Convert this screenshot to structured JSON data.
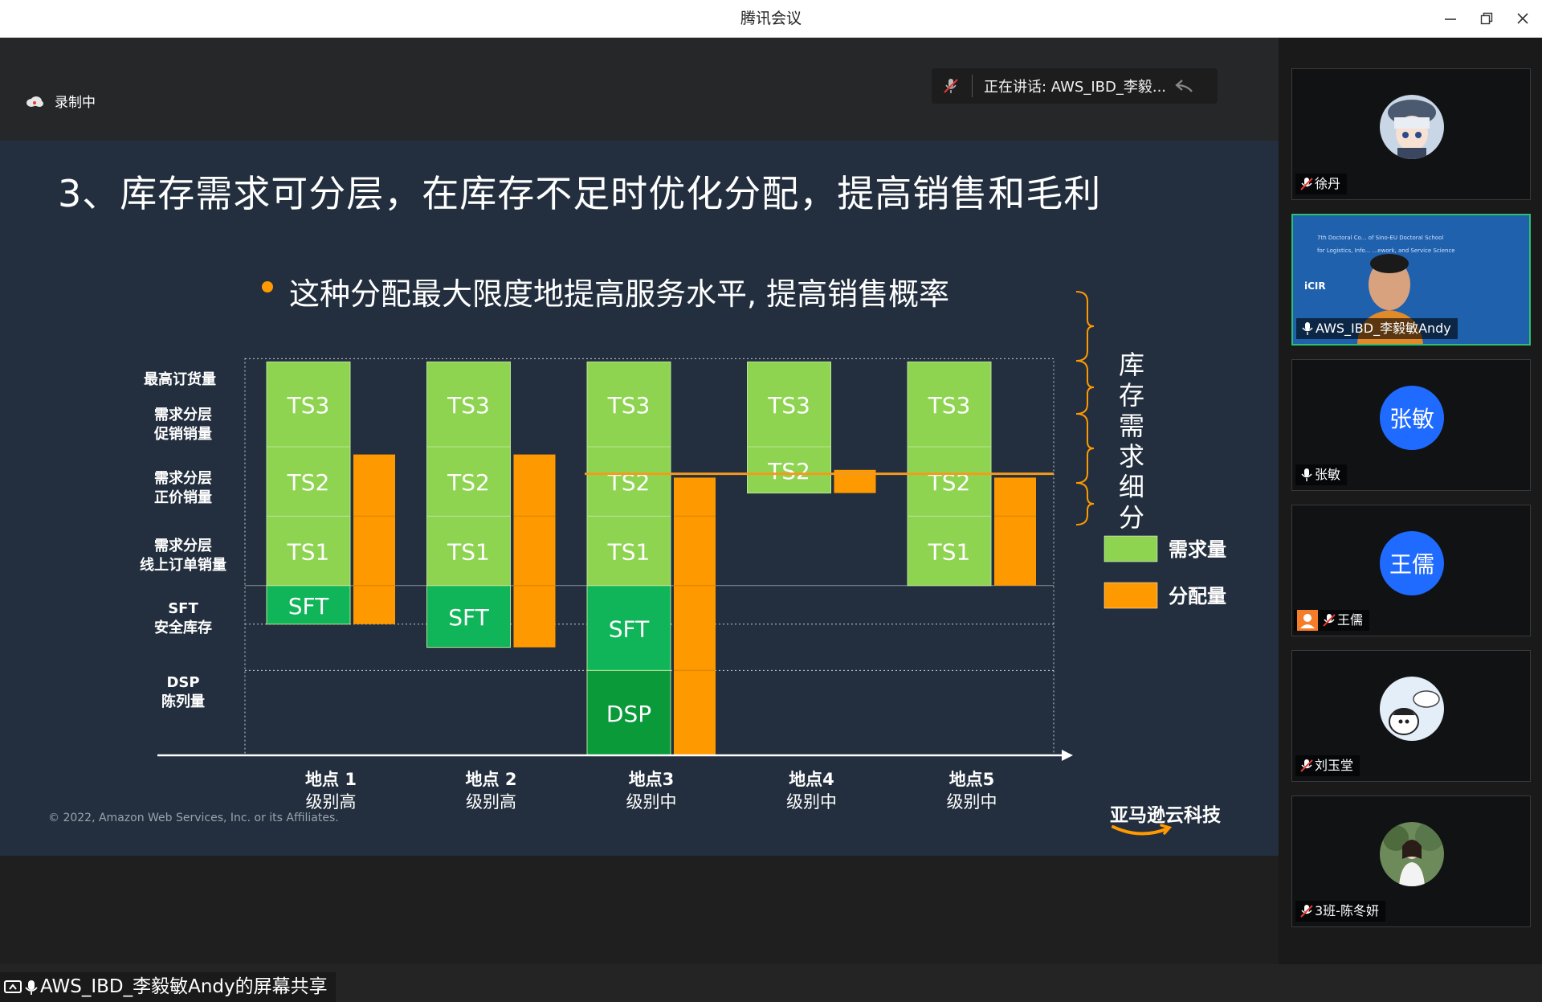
{
  "window": {
    "title": "腾讯会议"
  },
  "share_bar": {
    "recording_label": "录制中",
    "speaking": "正在讲话: AWS_IBD_李毅..."
  },
  "slide": {
    "title": "3、库存需求可分层，在库存不足时优化分配，提高销售和毛利",
    "bullet": "这种分配最大限度地提高服务水平, 提高销售概率",
    "copyright": "© 2022, Amazon Web Services, Inc. or its Affiliates.",
    "logo_text": "亚马逊云科技"
  },
  "chart_data": {
    "type": "bar",
    "row_labels": [
      {
        "line1": "最高订货量",
        "line2": ""
      },
      {
        "line1": "需求分层",
        "line2": "促销销量"
      },
      {
        "line1": "需求分层",
        "line2": "正价销量"
      },
      {
        "line1": "需求分层",
        "line2": "线上订单销量"
      },
      {
        "line1": "SFT",
        "line2": "安全库存"
      },
      {
        "line1": "DSP",
        "line2": "陈列量"
      }
    ],
    "locations": [
      {
        "name": "地点 1",
        "level": "级别高",
        "demand": [
          {
            "label": "TS3",
            "bottom": 4.0,
            "top": 5.1
          },
          {
            "label": "TS2",
            "bottom": 3.1,
            "top": 4.0
          },
          {
            "label": "TS1",
            "bottom": 2.2,
            "top": 3.1
          },
          {
            "label": "SFT",
            "bottom": 1.7,
            "top": 2.2
          }
        ],
        "alloc": {
          "bottom": 1.7,
          "top": 3.9
        }
      },
      {
        "name": "地点 2",
        "level": "级别高",
        "demand": [
          {
            "label": "TS3",
            "bottom": 4.0,
            "top": 5.1
          },
          {
            "label": "TS2",
            "bottom": 3.1,
            "top": 4.0
          },
          {
            "label": "TS1",
            "bottom": 2.2,
            "top": 3.1
          },
          {
            "label": "SFT",
            "bottom": 1.4,
            "top": 2.2
          }
        ],
        "alloc": {
          "bottom": 1.4,
          "top": 3.9
        }
      },
      {
        "name": "地点3",
        "level": "级别中",
        "demand": [
          {
            "label": "TS3",
            "bottom": 4.0,
            "top": 5.1
          },
          {
            "label": "TS2",
            "bottom": 3.1,
            "top": 4.0
          },
          {
            "label": "TS1",
            "bottom": 2.2,
            "top": 3.1
          },
          {
            "label": "SFT",
            "bottom": 1.1,
            "top": 2.2
          },
          {
            "label": "DSP",
            "bottom": 0.0,
            "top": 1.1
          }
        ],
        "alloc": {
          "bottom": 0.0,
          "top": 3.6
        }
      },
      {
        "name": "地点4",
        "level": "级别中",
        "demand": [
          {
            "label": "TS3",
            "bottom": 4.0,
            "top": 5.1
          },
          {
            "label": "TS2",
            "bottom": 3.4,
            "top": 4.0
          }
        ],
        "alloc": {
          "bottom": 3.4,
          "top": 3.7
        }
      },
      {
        "name": "地点5",
        "level": "级别中",
        "demand": [
          {
            "label": "TS3",
            "bottom": 4.0,
            "top": 5.1
          },
          {
            "label": "TS2",
            "bottom": 3.1,
            "top": 4.0
          },
          {
            "label": "TS1",
            "bottom": 2.2,
            "top": 3.1
          }
        ],
        "alloc": {
          "bottom": 2.2,
          "top": 3.6
        }
      }
    ],
    "inventory_line": 3.65,
    "brace_label": [
      "库",
      "存",
      "需",
      "求",
      "细",
      "分"
    ],
    "legend": [
      {
        "name": "需求量",
        "color": "#8ed451"
      },
      {
        "name": "分配量",
        "color": "#ff9900"
      }
    ],
    "colors": {
      "ts": "#8ed451",
      "sft": "#11b559",
      "dsp": "#0a9a3a",
      "alloc": "#ff9900",
      "line": "#f39a1e"
    }
  },
  "participants": [
    {
      "name": "徐丹",
      "muted": true,
      "avatar": "anime-avatar"
    },
    {
      "name": "AWS_IBD_李毅敏Andy",
      "muted": false,
      "video": true
    },
    {
      "name": "张敏",
      "muted": false,
      "avatar_text": "张敏"
    },
    {
      "name": "王儒",
      "muted": true,
      "avatar_text": "王儒"
    },
    {
      "name": "刘玉堂",
      "muted": true,
      "avatar": "cartoon-avatar"
    },
    {
      "name": "3班-陈冬妍",
      "muted": true,
      "avatar": "photo-avatar"
    }
  ],
  "share_label": "AWS_IBD_李毅敏Andy的屏幕共享",
  "video_slide_text": [
    "7th Doctoral Co... of Sino-EU Doctoral School",
    "for Logistics, Info... ...ework, and Service Science",
    "iCIR"
  ]
}
